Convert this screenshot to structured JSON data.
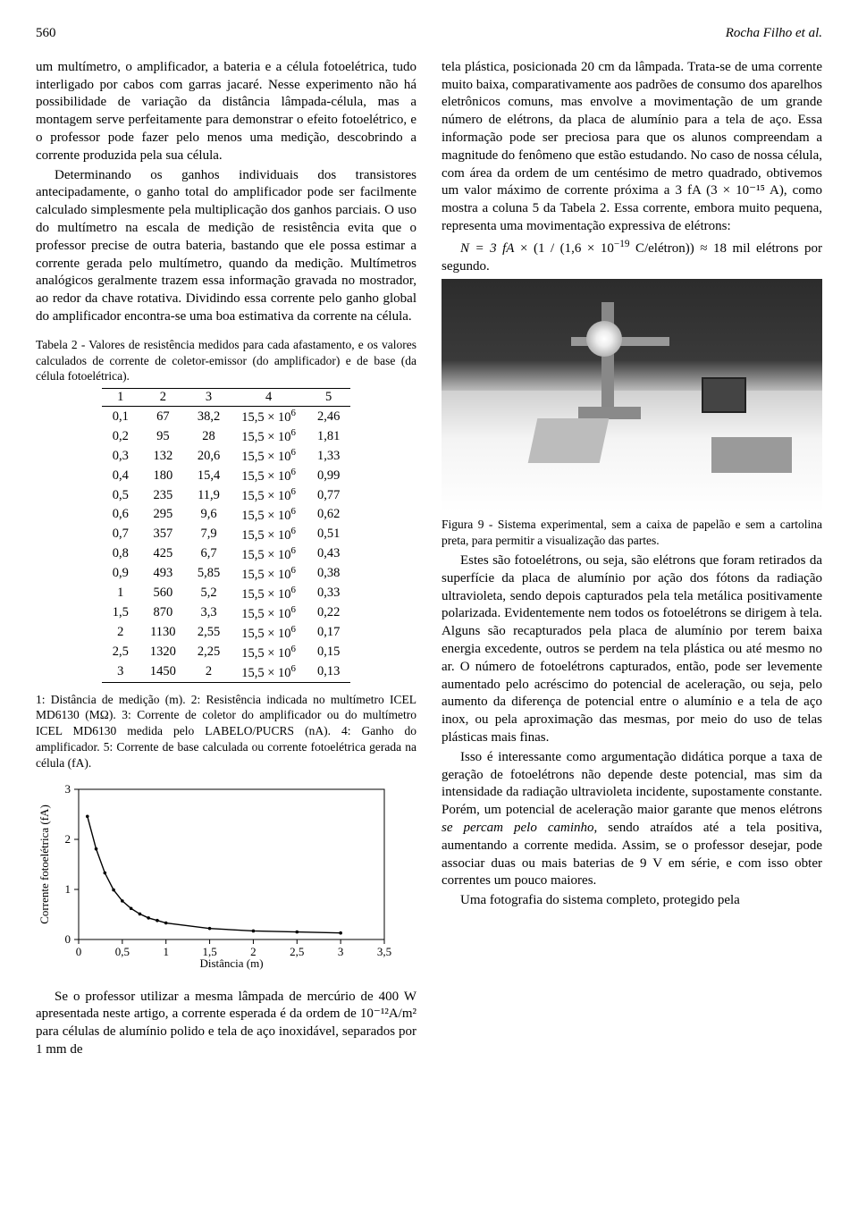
{
  "header": {
    "page_number": "560",
    "authors": "Rocha Filho et al."
  },
  "left": {
    "p1": "um multímetro, o amplificador, a bateria e a célula fotoelétrica, tudo interligado por cabos com garras jacaré. Nesse experimento não há possibilidade de variação da distância lâmpada-célula, mas a montagem serve perfeitamente para demonstrar o efeito fotoelétrico, e o professor pode fazer pelo menos uma medição, descobrindo a corrente produzida pela sua célula.",
    "p2": "Determinando os ganhos individuais dos transistores antecipadamente, o ganho total do amplificador pode ser facilmente calculado simplesmente pela multiplicação dos ganhos parciais. O uso do multímetro na escala de medição de resistência evita que o professor precise de outra bateria, bastando que ele possa estimar a corrente gerada pelo multímetro, quando da medição. Multímetros analógicos geralmente trazem essa informação gravada no mostrador, ao redor da chave rotativa. Dividindo essa corrente pelo ganho global do amplificador encontra-se uma boa estimativa da corrente na célula.",
    "table_caption": "Tabela 2 - Valores de resistência medidos para cada afastamento, e os valores calculados de corrente de coletor-emissor (do amplificador) e de base (da célula fotoelétrica).",
    "table_legend": "1: Distância de medição (m).  2: Resistência indicada no multímetro ICEL MD6130 (MΩ).  3: Corrente de coletor do amplificador ou do multímetro ICEL MD6130 medida pelo LABELO/PUCRS (nA). 4: Ganho do amplificador. 5: Corrente de base calculada ou corrente fotoelétrica gerada na célula (fA).",
    "p3": "Se o professor utilizar a mesma lâmpada de mercúrio de 400 W apresentada neste artigo, a corrente esperada é da ordem de 10⁻¹²A/m² para células de alumínio polido e tela de aço inoxidável, separados por 1 mm de"
  },
  "table": {
    "headers": [
      "1",
      "2",
      "3",
      "4",
      "5"
    ],
    "col4_base": "15,5 × 10",
    "col4_exp": "6",
    "rows": [
      [
        "0,1",
        "67",
        "38,2",
        "2,46"
      ],
      [
        "0,2",
        "95",
        "28",
        "1,81"
      ],
      [
        "0,3",
        "132",
        "20,6",
        "1,33"
      ],
      [
        "0,4",
        "180",
        "15,4",
        "0,99"
      ],
      [
        "0,5",
        "235",
        "11,9",
        "0,77"
      ],
      [
        "0,6",
        "295",
        "9,6",
        "0,62"
      ],
      [
        "0,7",
        "357",
        "7,9",
        "0,51"
      ],
      [
        "0,8",
        "425",
        "6,7",
        "0,43"
      ],
      [
        "0,9",
        "493",
        "5,85",
        "0,38"
      ],
      [
        "1",
        "560",
        "5,2",
        "0,33"
      ],
      [
        "1,5",
        "870",
        "3,3",
        "0,22"
      ],
      [
        "2",
        "1130",
        "2,55",
        "0,17"
      ],
      [
        "2,5",
        "1320",
        "2,25",
        "0,15"
      ],
      [
        "3",
        "1450",
        "2",
        "0,13"
      ]
    ]
  },
  "chart": {
    "type": "line",
    "xlabel": "Distância (m)",
    "ylabel": "Corrente fotoelétrica (fA)",
    "xlim": [
      0,
      3.5
    ],
    "xtick_step": 0.5,
    "ylim": [
      0,
      3
    ],
    "ytick_step": 1,
    "line_color": "#000000",
    "background_color": "#ffffff",
    "border_color": "#000000",
    "axis_fontsize": 13,
    "label_fontsize": 13,
    "x": [
      0.1,
      0.2,
      0.3,
      0.4,
      0.5,
      0.6,
      0.7,
      0.8,
      0.9,
      1.0,
      1.5,
      2.0,
      2.5,
      3.0
    ],
    "y": [
      2.46,
      1.81,
      1.33,
      0.99,
      0.77,
      0.62,
      0.51,
      0.43,
      0.38,
      0.33,
      0.22,
      0.17,
      0.15,
      0.13
    ]
  },
  "right": {
    "p1": "tela plástica, posicionada 20 cm da lâmpada. Trata-se de uma corrente muito baixa, comparativamente aos padrões de consumo dos aparelhos eletrônicos comuns, mas envolve a movimentação de um grande número de elétrons, da placa de alumínio para a tela de aço. Essa informação pode ser preciosa para que os alunos compreendam a magnitude do fenômeno que estão estudando. No caso de nossa célula, com área da ordem de um centésimo de metro quadrado, obtivemos um valor máximo de corrente próxima a 3 fA (3 × 10⁻¹⁵ A), como mostra a coluna 5 da Tabela 2. Essa corrente, embora muito pequena, representa uma movimentação expressiva de elétrons:",
    "formula_pre": "N = 3 ",
    "formula_fA": "fA",
    "formula_mid": " × (1 / (1,6 × 10",
    "formula_exp": "−19",
    "formula_post": " C/elétron)) ≈ 18 mil elétrons por segundo.",
    "fig_caption": "Figura 9 - Sistema experimental, sem a caixa de papelão e sem a cartolina preta, para permitir a visualização das partes.",
    "p2": "Estes são fotoelétrons, ou seja, são elétrons que foram retirados da superfície da placa de alumínio por ação dos fótons da radiação ultravioleta, sendo depois capturados pela tela metálica positivamente polarizada. Evidentemente nem todos os fotoelétrons se dirigem à tela. Alguns são recapturados pela placa de alumínio por terem baixa energia excedente, outros se perdem na tela plástica ou até mesmo no ar. O número de fotoelétrons capturados, então, pode ser levemente aumentado pelo acréscimo do potencial de aceleração, ou seja, pelo aumento da diferença de potencial entre o alumínio e a tela de aço inox, ou pela aproximação das mesmas, por meio do uso de telas plásticas mais finas.",
    "p3_a": "Isso é interessante como argumentação didática porque a taxa de geração de fotoelétrons não depende deste potencial, mas sim da intensidade da radiação ultravioleta incidente, supostamente constante. Porém, um potencial de aceleração maior garante que menos elétrons ",
    "p3_ital": "se percam pelo caminho",
    "p3_b": ", sendo atraídos até a tela positiva, aumentando a corrente medida. Assim, se o professor desejar, pode associar duas ou mais baterias de 9 V em série, e com isso obter correntes um pouco maiores.",
    "p4": "Uma fotografia do sistema completo, protegido pela"
  }
}
